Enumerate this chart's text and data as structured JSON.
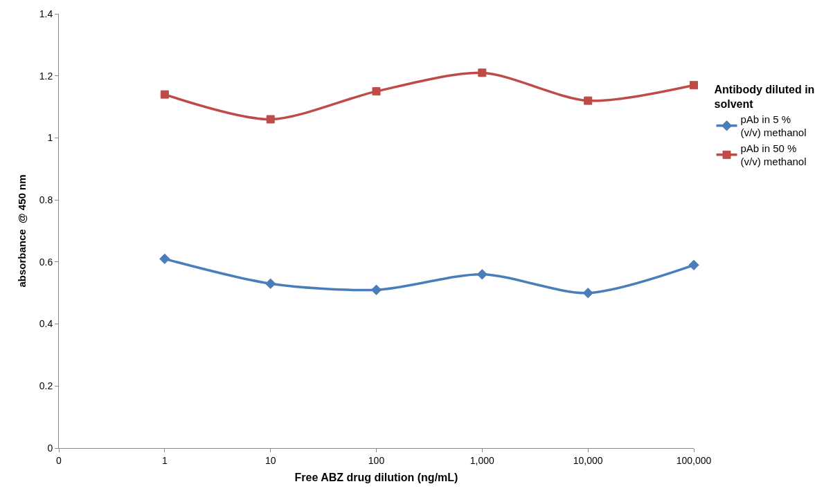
{
  "chart_data": {
    "type": "line",
    "xlabel": "Free ABZ drug dilution (ng/mL)",
    "ylabel": "absorbance  @ 450 nm",
    "legend_title": "Antibody diluted in solvent",
    "x": [
      1,
      10,
      100,
      1000,
      10000,
      100000
    ],
    "series": [
      {
        "name": "pAb in 5 %  (v/v) methanol",
        "color": "#4a7ebb",
        "marker": "diamond",
        "values": [
          0.61,
          0.53,
          0.51,
          0.56,
          0.5,
          0.59
        ]
      },
      {
        "name": "pAb in 50 % (v/v) methanol",
        "color": "#be4b48",
        "marker": "square",
        "values": [
          1.14,
          1.06,
          1.15,
          1.21,
          1.12,
          1.17
        ]
      }
    ],
    "log": "x",
    "xlim": [
      0.1,
      100000
    ],
    "xticks": [
      {
        "value": 0.1,
        "label": "0"
      },
      {
        "value": 1,
        "label": "1"
      },
      {
        "value": 10,
        "label": "10"
      },
      {
        "value": 100,
        "label": "100"
      },
      {
        "value": 1000,
        "label": "1,000"
      },
      {
        "value": 10000,
        "label": "10,000"
      },
      {
        "value": 100000,
        "label": "100,000"
      }
    ],
    "ylim": [
      0,
      1.4
    ],
    "yticks": [
      0,
      0.2,
      0.4,
      0.6,
      0.8,
      1,
      1.2,
      1.4
    ],
    "legend": "right",
    "line_style": "solid"
  }
}
